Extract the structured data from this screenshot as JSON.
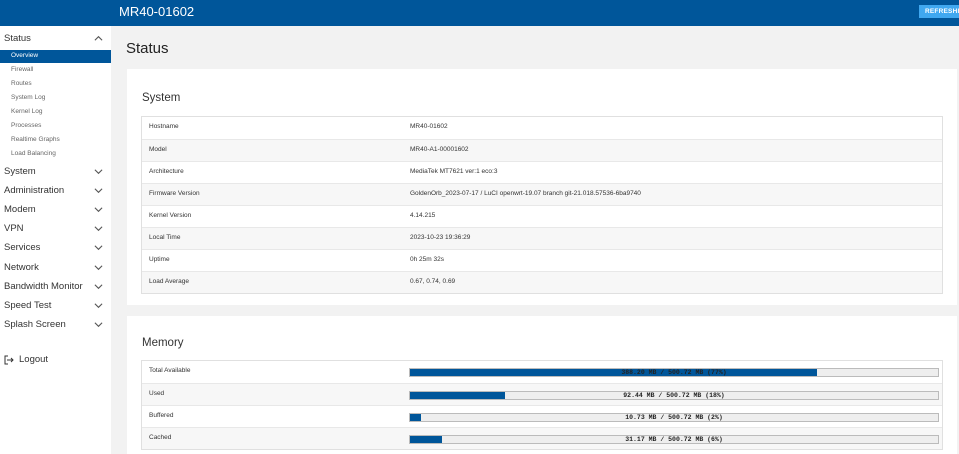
{
  "header": {
    "hostname": "MR40-01602",
    "refresh_label": "REFRESHING"
  },
  "sidebar": {
    "categories": [
      {
        "label": "Status",
        "expanded": true
      },
      {
        "label": "System"
      },
      {
        "label": "Administration"
      },
      {
        "label": "Modem"
      },
      {
        "label": "VPN"
      },
      {
        "label": "Services"
      },
      {
        "label": "Network"
      },
      {
        "label": "Bandwidth Monitor"
      },
      {
        "label": "Speed Test"
      },
      {
        "label": "Splash Screen"
      }
    ],
    "status_items": [
      "Overview",
      "Firewall",
      "Routes",
      "System Log",
      "Kernel Log",
      "Processes",
      "Realtime Graphs",
      "Load Balancing"
    ],
    "active_item": "Overview",
    "logout_label": "Logout"
  },
  "page": {
    "title": "Status"
  },
  "system": {
    "title": "System",
    "rows": [
      {
        "key": "Hostname",
        "value": "MR40-01602"
      },
      {
        "key": "Model",
        "value": "MR40-A1-00001602"
      },
      {
        "key": "Architecture",
        "value": "MediaTek MT7621 ver:1 eco:3"
      },
      {
        "key": "Firmware Version",
        "value": "GoldenOrb_2023-07-17 / LuCI openwrt-19.07 branch git-21.018.57536-6ba9740"
      },
      {
        "key": "Kernel Version",
        "value": "4.14.215"
      },
      {
        "key": "Local Time",
        "value": "2023-10-23 19:36:29"
      },
      {
        "key": "Uptime",
        "value": "0h 25m 32s"
      },
      {
        "key": "Load Average",
        "value": "0.67, 0.74, 0.69"
      }
    ]
  },
  "memory": {
    "title": "Memory",
    "rows": [
      {
        "key": "Total Available",
        "text": "388.20 MB / 500.72 MB (77%)",
        "percent": 77
      },
      {
        "key": "Used",
        "text": "92.44 MB / 500.72 MB (18%)",
        "percent": 18
      },
      {
        "key": "Buffered",
        "text": "10.73 MB / 500.72 MB (2%)",
        "percent": 2
      },
      {
        "key": "Cached",
        "text": "31.17 MB / 500.72 MB (6%)",
        "percent": 6
      }
    ]
  },
  "colors": {
    "brand": "#00569a",
    "refresh": "#40a8f0",
    "background": "#f2f2f2"
  },
  "icons": {
    "collapse": "chevron-up-icon",
    "expand": "chevron-down-icon",
    "logout": "logout-icon"
  }
}
